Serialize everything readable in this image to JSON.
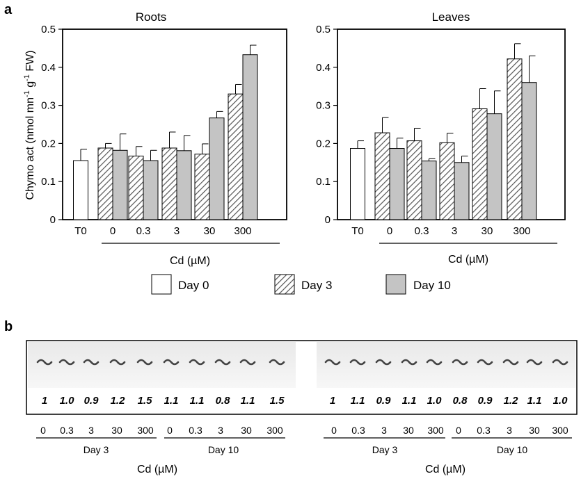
{
  "panel_labels": {
    "a": "a",
    "b": "b"
  },
  "legend": {
    "day0": "Day 0",
    "day3": "Day 3",
    "day10": "Day 10"
  },
  "chart_data": [
    {
      "type": "bar",
      "title": "Roots",
      "ylabel": "Chymo act (nmol mn-1 g-1 FW)",
      "ylabel_parts": {
        "main": "Chymo act (nmol mn",
        "sup1": "-1",
        "mid": " g",
        "sup2": "-1",
        "end": " FW)"
      },
      "xlabel": "Cd (µM)",
      "ylim": [
        0,
        0.5
      ],
      "yticks": [
        "0",
        "0.1",
        "0.2",
        "0.3",
        "0.4",
        "0.5"
      ],
      "categories": [
        "T0",
        "0",
        "0.3",
        "3",
        "30",
        "300"
      ],
      "series": [
        {
          "name": "Day 0",
          "values": [
            0.155,
            null,
            null,
            null,
            null,
            null
          ],
          "errors": [
            0.03,
            null,
            null,
            null,
            null,
            null
          ]
        },
        {
          "name": "Day 3",
          "values": [
            null,
            0.188,
            0.167,
            0.188,
            0.172,
            0.33
          ],
          "errors": [
            null,
            0.012,
            0.025,
            0.042,
            0.027,
            0.025
          ]
        },
        {
          "name": "Day 10",
          "values": [
            null,
            0.182,
            0.155,
            0.181,
            0.267,
            0.433
          ],
          "errors": [
            null,
            0.043,
            0.027,
            0.04,
            0.017,
            0.025
          ]
        }
      ]
    },
    {
      "type": "bar",
      "title": "Leaves",
      "xlabel": "Cd (µM)",
      "ylim": [
        0,
        0.5
      ],
      "yticks": [
        "0",
        "0.1",
        "0.2",
        "0.3",
        "0.4",
        "0.5"
      ],
      "categories": [
        "T0",
        "0",
        "0.3",
        "3",
        "30",
        "300"
      ],
      "series": [
        {
          "name": "Day 0",
          "values": [
            0.187,
            null,
            null,
            null,
            null,
            null
          ],
          "errors": [
            0.02,
            null,
            null,
            null,
            null,
            null
          ]
        },
        {
          "name": "Day 3",
          "values": [
            null,
            0.228,
            0.207,
            0.202,
            0.291,
            0.422
          ],
          "errors": [
            null,
            0.04,
            0.033,
            0.025,
            0.053,
            0.04
          ]
        },
        {
          "name": "Day 10",
          "values": [
            null,
            0.187,
            0.154,
            0.15,
            0.278,
            0.36
          ],
          "errors": [
            null,
            0.027,
            0.006,
            0.017,
            0.06,
            0.07
          ]
        }
      ]
    }
  ],
  "blot": {
    "left": {
      "ratios": [
        "1",
        "1.0",
        "0.9",
        "1.2",
        "1.5",
        "1.1",
        "1.1",
        "0.8",
        "1.1",
        "1.5"
      ],
      "conc_labels": [
        "0",
        "0.3",
        "3",
        "30",
        "300",
        "0",
        "0.3",
        "3",
        "30",
        "300"
      ],
      "day_labels": [
        "Day 3",
        "Day 10"
      ],
      "xlabel": "Cd (µM)"
    },
    "right": {
      "ratios": [
        "1",
        "1.1",
        "0.9",
        "1.1",
        "1.0",
        "0.8",
        "0.9",
        "1.2",
        "1.1",
        "1.0"
      ],
      "conc_labels": [
        "0",
        "0.3",
        "3",
        "30",
        "300",
        "0",
        "0.3",
        "3",
        "30",
        "300"
      ],
      "day_labels": [
        "Day 3",
        "Day 10"
      ],
      "xlabel": "Cd (µM)"
    }
  }
}
